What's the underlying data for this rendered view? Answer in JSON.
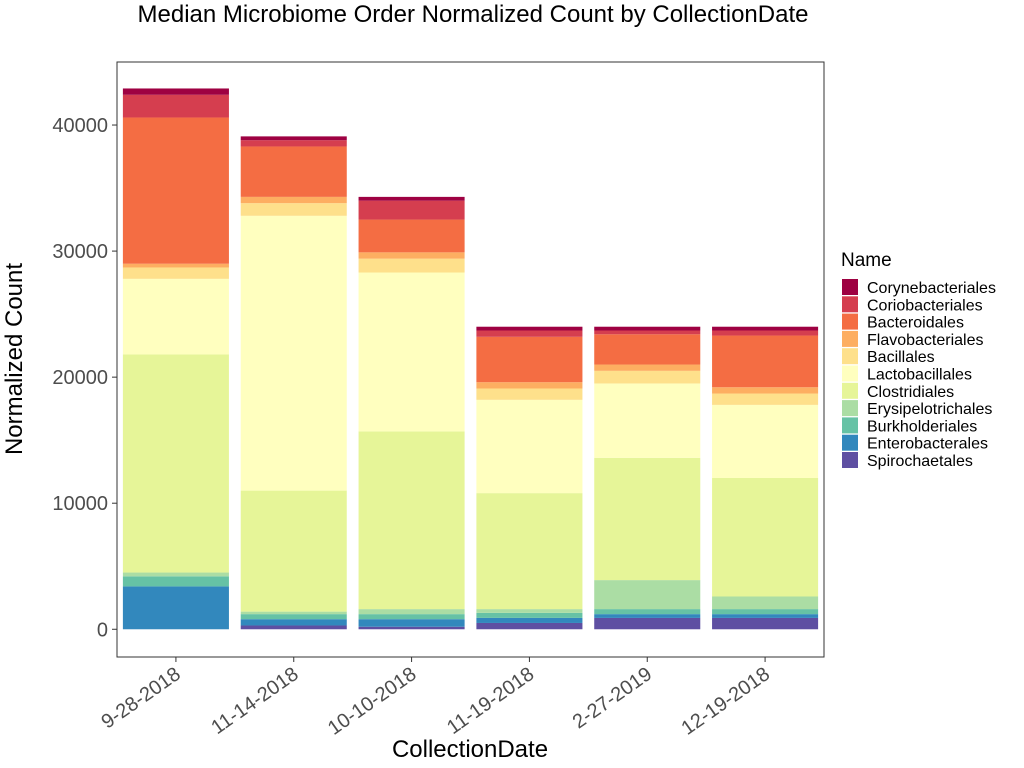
{
  "chart_data": {
    "type": "bar",
    "stacked": true,
    "title": "Median Microbiome Order Normalized Count by CollectionDate",
    "xlabel": "CollectionDate",
    "ylabel": "Normalized Count",
    "categories": [
      "9-28-2018",
      "11-14-2018",
      "10-10-2018",
      "11-19-2018",
      "2-27-2019",
      "12-19-2018"
    ],
    "ylim": [
      -2200,
      45000
    ],
    "yticks": [
      0,
      10000,
      20000,
      30000,
      40000
    ],
    "grid": false,
    "legend": {
      "title": "Name",
      "placement": "right"
    },
    "series": [
      {
        "name": "Spirochaetales",
        "color": "#5E4FA2",
        "values": [
          0,
          300,
          200,
          500,
          900,
          900
        ]
      },
      {
        "name": "Enterobacterales",
        "color": "#3288BD",
        "values": [
          3400,
          500,
          600,
          400,
          300,
          300
        ]
      },
      {
        "name": "Burkholderiales",
        "color": "#66C2A5",
        "values": [
          800,
          400,
          400,
          400,
          400,
          400
        ]
      },
      {
        "name": "Erysipelotrichales",
        "color": "#ABDDA4",
        "values": [
          300,
          200,
          400,
          300,
          2300,
          1000
        ]
      },
      {
        "name": "Clostridiales",
        "color": "#E6F598",
        "values": [
          17300,
          9600,
          14100,
          9200,
          9700,
          9400
        ]
      },
      {
        "name": "Lactobacillales",
        "color": "#FFFFBF",
        "values": [
          6000,
          21800,
          12600,
          7400,
          5900,
          5800
        ]
      },
      {
        "name": "Bacillales",
        "color": "#FEE08B",
        "values": [
          900,
          1000,
          1100,
          900,
          1000,
          900
        ]
      },
      {
        "name": "Flavobacteriales",
        "color": "#FDAE61",
        "values": [
          300,
          500,
          500,
          500,
          500,
          500
        ]
      },
      {
        "name": "Bacteroidales",
        "color": "#F46D43",
        "values": [
          11600,
          4000,
          2600,
          3600,
          2400,
          4100
        ]
      },
      {
        "name": "Coriobacteriales",
        "color": "#D53E4F",
        "values": [
          1800,
          500,
          1500,
          500,
          300,
          400
        ]
      },
      {
        "name": "Corynebacteriales",
        "color": "#9E0142",
        "values": [
          500,
          300,
          300,
          300,
          300,
          300
        ]
      }
    ]
  }
}
